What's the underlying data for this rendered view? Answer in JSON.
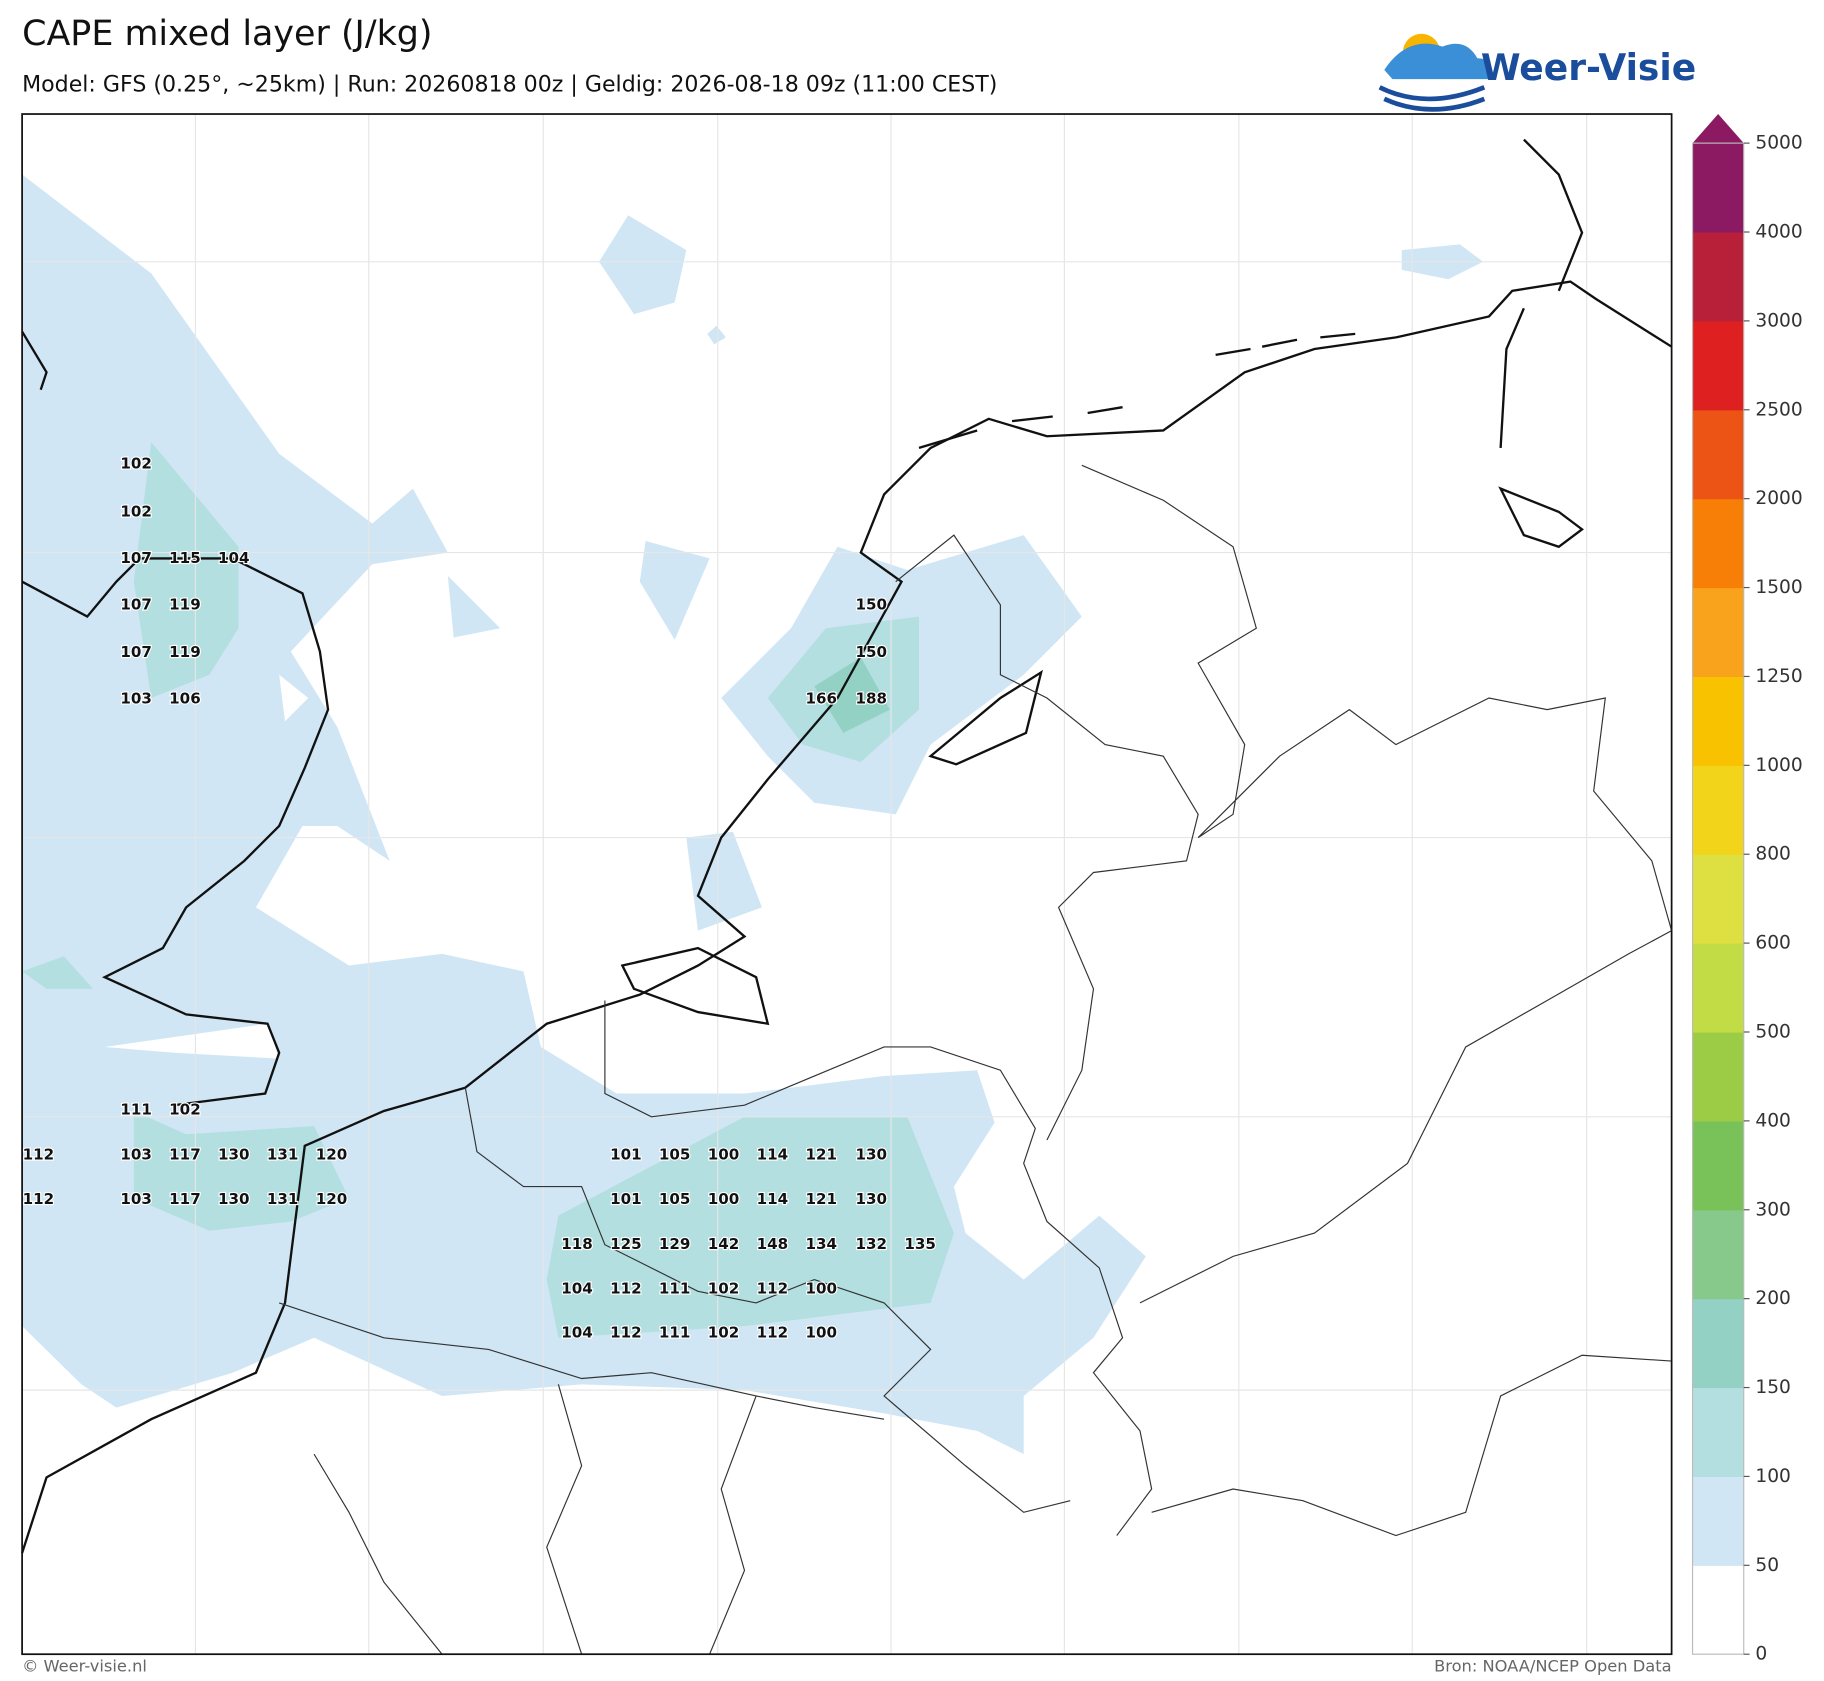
{
  "header": {
    "title": "CAPE mixed layer (J/kg)",
    "subtitle": "Model: GFS (0.25°, ~25km)  |  Run: 20260818 00z  |  Geldig: 2026-08-18 09z (11:00 CEST)",
    "logo": "Weer-Visie"
  },
  "footer": {
    "left": "© Weer-visie.nl",
    "right": "Bron: NOAA/NCEP Open Data"
  },
  "colorbar": {
    "ticks": [
      0,
      50,
      100,
      150,
      200,
      300,
      400,
      500,
      600,
      800,
      1000,
      1250,
      1500,
      2000,
      2500,
      3000,
      4000,
      5000
    ],
    "colors": [
      "#ffffff",
      "#d0e6f5",
      "#b3dfe0",
      "#93d1c5",
      "#86c98a",
      "#79c25a",
      "#9ccc45",
      "#c2dc45",
      "#dde040",
      "#f2d51a",
      "#f9c200",
      "#f9a21b",
      "#f77f07",
      "#ec5415",
      "#df2020",
      "#b8203a",
      "#8b1a63"
    ],
    "extend_color": "#8b1a63"
  },
  "labels": {
    "uk": [
      [
        102
      ],
      [
        102
      ],
      [
        107,
        115,
        104
      ],
      [
        107,
        119
      ],
      [
        107,
        119
      ],
      [
        103,
        106
      ]
    ],
    "nl": [
      [
        150
      ],
      [
        150
      ],
      [
        166,
        188
      ]
    ],
    "southwest": [
      [
        111,
        102
      ],
      [
        112,
        103,
        117,
        130,
        131,
        120
      ],
      [
        112,
        103,
        117,
        130,
        131,
        120
      ]
    ],
    "belgium": [
      [
        101,
        105,
        100,
        114,
        121,
        130
      ],
      [
        101,
        105,
        100,
        114,
        121,
        130
      ],
      [
        118,
        125,
        129,
        142,
        148,
        134,
        132,
        135
      ],
      [
        104,
        112,
        111,
        102,
        112,
        100
      ],
      [
        104,
        112,
        111,
        102,
        112,
        100
      ]
    ]
  }
}
